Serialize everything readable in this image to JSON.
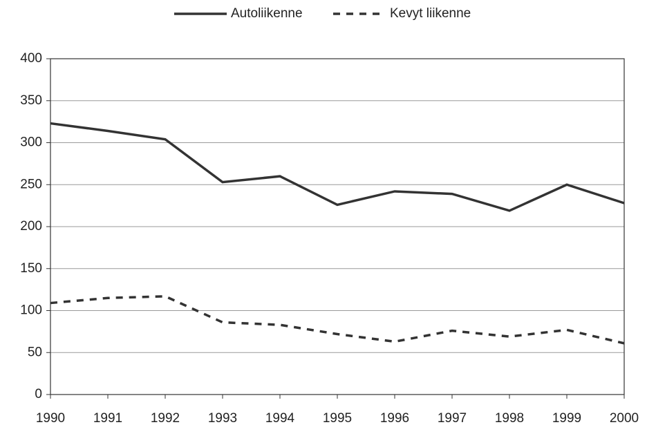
{
  "chart_data": {
    "type": "line",
    "x": [
      1990,
      1991,
      1992,
      1993,
      1994,
      1995,
      1996,
      1997,
      1998,
      1999,
      2000
    ],
    "series": [
      {
        "name": "Autoliikenne",
        "color": "#333333",
        "dash": "solid",
        "values": [
          323,
          314,
          304,
          253,
          260,
          226,
          242,
          239,
          219,
          250,
          228
        ]
      },
      {
        "name": "Kevyt liikenne",
        "color": "#333333",
        "dash": "dashed",
        "values": [
          109,
          115,
          117,
          86,
          83,
          72,
          63,
          76,
          69,
          77,
          61
        ]
      }
    ],
    "xlim": [
      1990,
      2000
    ],
    "xticks": [
      1990,
      1991,
      1992,
      1993,
      1994,
      1995,
      1996,
      1997,
      1998,
      1999,
      2000
    ],
    "ylim": [
      0,
      400
    ],
    "yticks": [
      0,
      50,
      100,
      150,
      200,
      250,
      300,
      350,
      400
    ],
    "grid": true,
    "legend": "top"
  }
}
